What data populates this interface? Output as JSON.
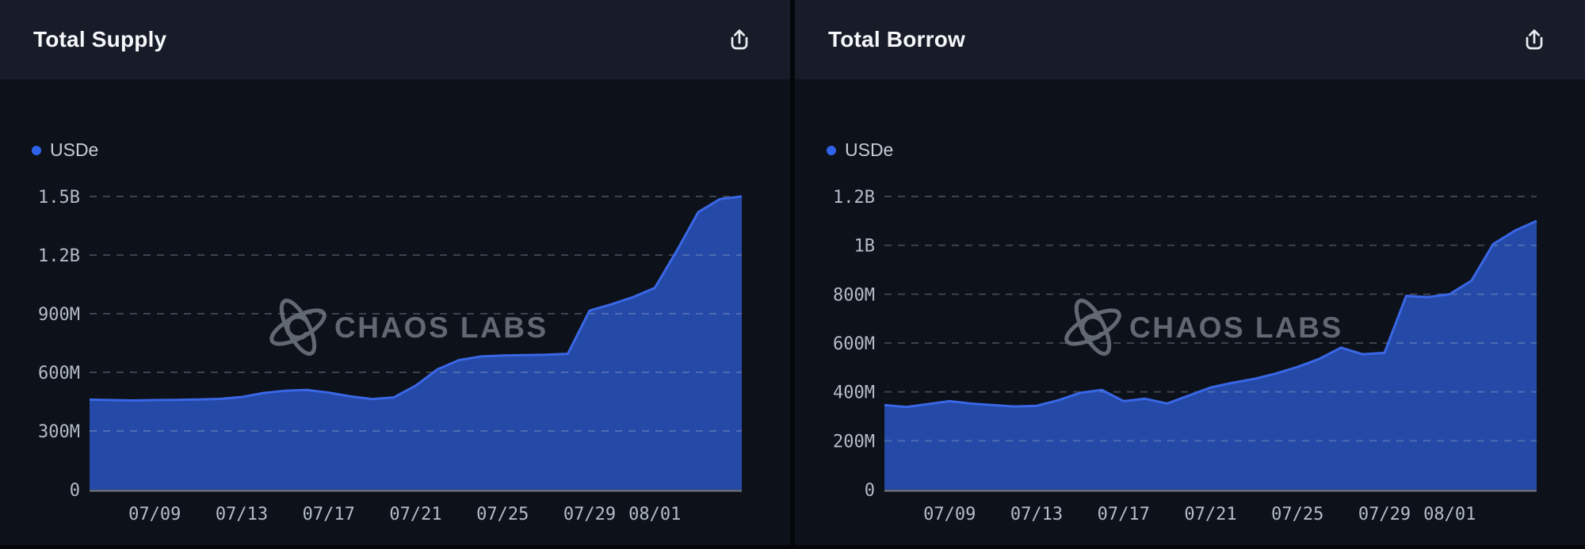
{
  "style": {
    "page_bg": "#04060a",
    "header_bg": "#171c28",
    "body_bg": "#0d1119",
    "title_color": "#f5f7fa",
    "legend_dot_color": "#2f64ea",
    "area_fill": "#2449a6",
    "area_stroke": "#3a67e6",
    "grid_color": "rgba(188,198,214,0.28)",
    "baseline_color": "rgba(188,198,214,0.55)",
    "axis_label_color": "#b4bcc9",
    "watermark_color": "#787e89",
    "icon_color": "#e9ecf1"
  },
  "panels": [
    {
      "title": "Total Supply",
      "export_icon": "share-icon",
      "legend": {
        "label": "USDe",
        "color": "#2f64ea"
      },
      "watermark": "CHAOS LABS",
      "chart_data": {
        "type": "area",
        "title": "Total Supply",
        "series_name": "USDe",
        "values_in": "millions_usd",
        "x": [
          "07/06",
          "07/07",
          "07/08",
          "07/09",
          "07/10",
          "07/11",
          "07/12",
          "07/13",
          "07/14",
          "07/15",
          "07/16",
          "07/17",
          "07/18",
          "07/19",
          "07/20",
          "07/21",
          "07/22",
          "07/23",
          "07/24",
          "07/25",
          "07/26",
          "07/27",
          "07/28",
          "07/29",
          "07/30",
          "07/31",
          "08/01",
          "08/02",
          "08/03",
          "08/04",
          "08/05"
        ],
        "series": [
          {
            "name": "USDe",
            "values": [
              460,
              458,
              456,
              458,
              459,
              461,
              464,
              474,
              494,
              506,
              510,
              496,
              477,
              463,
              472,
              532,
              615,
              663,
              681,
              686,
              688,
              690,
              695,
              916,
              948,
              985,
              1032,
              1220,
              1420,
              1487,
              1500
            ]
          }
        ],
        "ylim": [
          0,
          1500
        ],
        "y_gridlines": [
          {
            "label": "1.5B",
            "value": 1500
          },
          {
            "label": "1.2B",
            "value": 1200
          },
          {
            "label": "900M",
            "value": 900
          },
          {
            "label": "600M",
            "value": 600
          },
          {
            "label": "300M",
            "value": 300
          }
        ],
        "y_zero_label": "0",
        "x_tick_labels": [
          "07/09",
          "07/13",
          "07/17",
          "07/21",
          "07/25",
          "07/29",
          "08/01"
        ],
        "grid": "dashed-horizontal",
        "legend_position": "top-left"
      }
    },
    {
      "title": "Total Borrow",
      "export_icon": "share-icon",
      "legend": {
        "label": "USDe",
        "color": "#2f64ea"
      },
      "watermark": "CHAOS LABS",
      "chart_data": {
        "type": "area",
        "title": "Total Borrow",
        "series_name": "USDe",
        "values_in": "millions_usd",
        "x": [
          "07/06",
          "07/07",
          "07/08",
          "07/09",
          "07/10",
          "07/11",
          "07/12",
          "07/13",
          "07/14",
          "07/15",
          "07/16",
          "07/17",
          "07/18",
          "07/19",
          "07/20",
          "07/21",
          "07/22",
          "07/23",
          "07/24",
          "07/25",
          "07/26",
          "07/27",
          "07/28",
          "07/29",
          "07/30",
          "07/31",
          "08/01",
          "08/02",
          "08/03",
          "08/04",
          "08/05"
        ],
        "series": [
          {
            "name": "USDe",
            "values": [
              346,
              338,
              350,
              362,
              352,
              346,
              340,
              343,
              366,
              396,
              408,
              362,
              372,
              352,
              385,
              418,
              437,
              453,
              475,
              502,
              535,
              581,
              554,
              560,
              793,
              788,
              800,
              855,
              1005,
              1060,
              1100
            ]
          }
        ],
        "ylim": [
          0,
          1200
        ],
        "y_gridlines": [
          {
            "label": "1.2B",
            "value": 1200
          },
          {
            "label": "1B",
            "value": 1000
          },
          {
            "label": "800M",
            "value": 800
          },
          {
            "label": "600M",
            "value": 600
          },
          {
            "label": "400M",
            "value": 400
          },
          {
            "label": "200M",
            "value": 200
          }
        ],
        "y_zero_label": "0",
        "x_tick_labels": [
          "07/09",
          "07/13",
          "07/17",
          "07/21",
          "07/25",
          "07/29",
          "08/01"
        ],
        "grid": "dashed-horizontal",
        "legend_position": "top-left"
      }
    }
  ]
}
